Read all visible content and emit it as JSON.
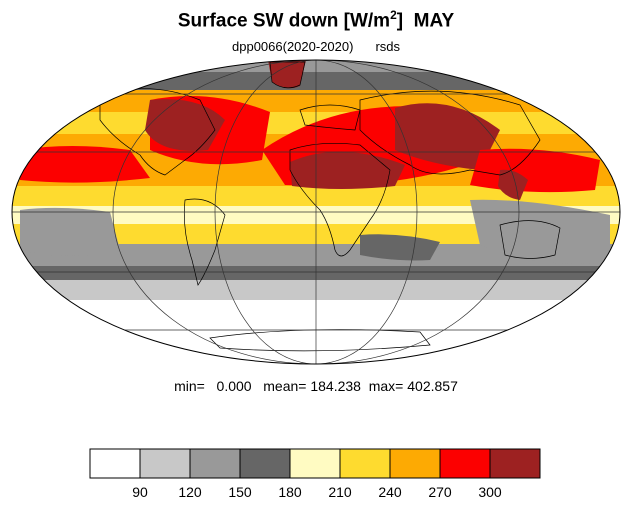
{
  "title": {
    "main": "Surface SW down [W/m",
    "superscript": "2",
    "close": "]",
    "month": "MAY"
  },
  "subtitle": {
    "run": "dpp0066(2020-2020)",
    "variable": "rsds"
  },
  "stats": {
    "min_label": "min=",
    "min": "0.000",
    "mean_label": "mean=",
    "mean": "184.238",
    "max_label": "max=",
    "max": "402.857"
  },
  "colorbar": {
    "ticks": [
      "90",
      "120",
      "150",
      "180",
      "210",
      "240",
      "270",
      "300"
    ],
    "colors": [
      "#ffffff",
      "#c8c8c8",
      "#999999",
      "#666666",
      "#fffbc2",
      "#fedb2f",
      "#fdaa03",
      "#fc0000",
      "#9d2121"
    ]
  },
  "map": {
    "projection": "mollweide",
    "grid": true
  }
}
